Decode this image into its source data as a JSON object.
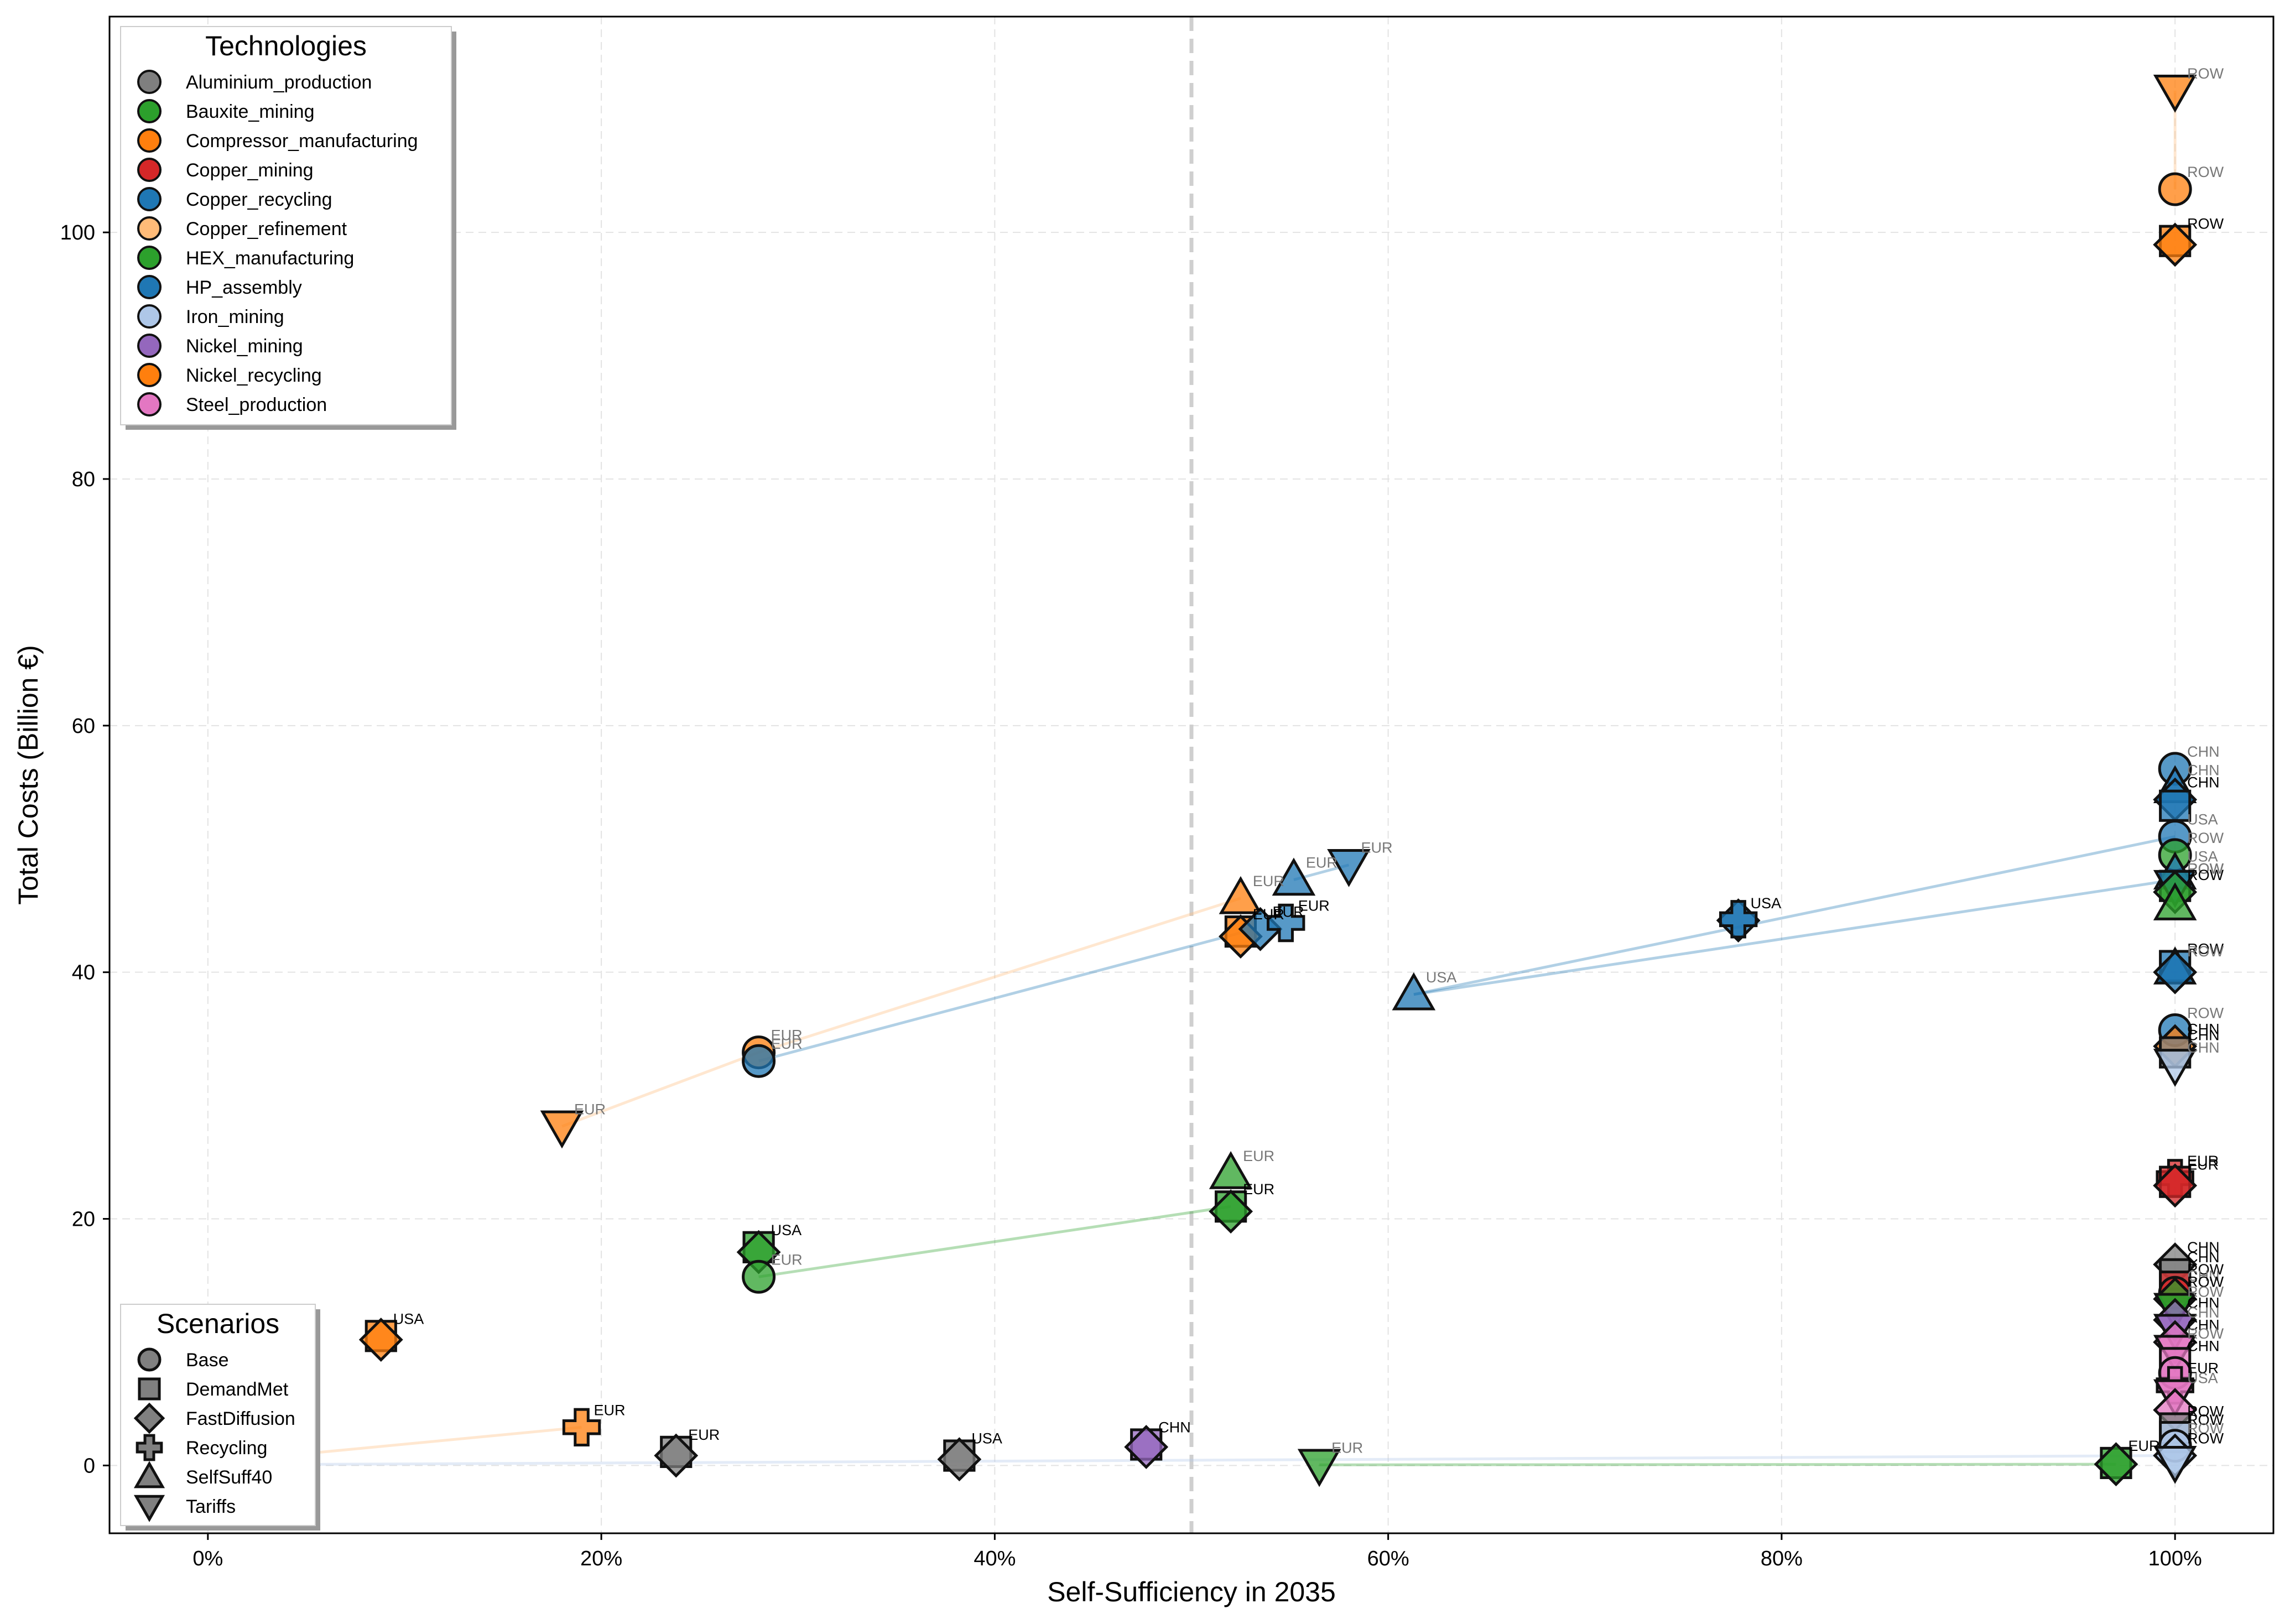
{
  "chart_data": {
    "type": "scatter",
    "xlabel": "Self-Sufficiency in 2035",
    "ylabel": "Total Costs (Billion €)",
    "xlim": [
      -0.05,
      1.05
    ],
    "ylim": [
      -5.5,
      117.5
    ],
    "x_ticks": [
      0,
      0.2,
      0.4,
      0.6,
      0.8,
      1.0
    ],
    "x_tick_labels": [
      "0%",
      "20%",
      "40%",
      "60%",
      "80%",
      "100%"
    ],
    "y_ticks": [
      0,
      20,
      40,
      60,
      80,
      100
    ],
    "y_tick_labels": [
      "0",
      "20",
      "40",
      "60",
      "80",
      "100"
    ],
    "grid": true,
    "reference_line_x": 0.5,
    "legends": {
      "technologies": {
        "title": "Technologies",
        "placement": "upper-left",
        "entries": [
          {
            "name": "Aluminium_production",
            "color": "#7f7f7f"
          },
          {
            "name": "Bauxite_mining",
            "color": "#2ca02c"
          },
          {
            "name": "Compressor_manufacturing",
            "color": "#ff7f0e"
          },
          {
            "name": "Copper_mining",
            "color": "#d62728"
          },
          {
            "name": "Copper_recycling",
            "color": "#1f77b4"
          },
          {
            "name": "Copper_refinement",
            "color": "#ffbb78"
          },
          {
            "name": "HEX_manufacturing",
            "color": "#2ca02c"
          },
          {
            "name": "HP_assembly",
            "color": "#1f77b4"
          },
          {
            "name": "Iron_mining",
            "color": "#aec7e8"
          },
          {
            "name": "Nickel_mining",
            "color": "#9467bd"
          },
          {
            "name": "Nickel_recycling",
            "color": "#ff7f0e"
          },
          {
            "name": "Steel_production",
            "color": "#e377c2"
          }
        ]
      },
      "scenarios": {
        "title": "Scenarios",
        "placement": "lower-left",
        "entries": [
          {
            "name": "Base",
            "marker": "circle"
          },
          {
            "name": "DemandMet",
            "marker": "square"
          },
          {
            "name": "FastDiffusion",
            "marker": "diamond"
          },
          {
            "name": "Recycling",
            "marker": "plus"
          },
          {
            "name": "SelfSuff40",
            "marker": "triangle-up"
          },
          {
            "name": "Tariffs",
            "marker": "triangle-down"
          }
        ]
      }
    },
    "lines": [
      {
        "color": "#ffbb78",
        "points": [
          [
            0.18,
            27.5
          ],
          [
            0.28,
            33.5
          ],
          [
            0.525,
            46
          ]
        ]
      },
      {
        "color": "#1f77b4",
        "points": [
          [
            0.28,
            32.8
          ],
          [
            0.525,
            43.2
          ]
        ]
      },
      {
        "color": "#1f77b4",
        "points": [
          [
            0.552,
            47.5
          ],
          [
            0.58,
            48.7
          ]
        ]
      },
      {
        "color": "#2ca02c",
        "points": [
          [
            0.28,
            15.3
          ],
          [
            0.52,
            21
          ]
        ]
      },
      {
        "color": "#1f77b4",
        "points": [
          [
            0.613,
            38.2
          ],
          [
            1.0,
            51
          ]
        ]
      },
      {
        "color": "#1f77b4",
        "points": [
          [
            0.613,
            38.2
          ],
          [
            1.0,
            47.5
          ]
        ]
      },
      {
        "color": "#ffbb78",
        "points": [
          [
            0.0,
            0.2
          ],
          [
            0.19,
            3.1
          ]
        ]
      },
      {
        "color": "#aec7e8",
        "points": [
          [
            0.0,
            0.05
          ],
          [
            1.0,
            0.8
          ]
        ]
      },
      {
        "color": "#2ca02c",
        "points": [
          [
            0.565,
            0.05
          ],
          [
            0.97,
            0.1
          ]
        ]
      },
      {
        "color": "#ffbb78",
        "points": [
          [
            1.0,
            103.5
          ],
          [
            1.0,
            111.5
          ]
        ]
      }
    ],
    "points": [
      {
        "tech": "Nickel_recycling",
        "scenario": "Tariffs",
        "x": 1.0,
        "y": 111.5,
        "label": "ROW"
      },
      {
        "tech": "Nickel_recycling",
        "scenario": "Base",
        "x": 1.0,
        "y": 103.5,
        "label": "ROW"
      },
      {
        "tech": "Nickel_recycling",
        "scenario": "DemandMet",
        "x": 1.0,
        "y": 99.3,
        "label": "ROW"
      },
      {
        "tech": "Nickel_recycling",
        "scenario": "FastDiffusion",
        "x": 1.0,
        "y": 99.0,
        "label": ""
      },
      {
        "tech": "Copper_recycling",
        "scenario": "Base",
        "x": 1.0,
        "y": 56.5,
        "label": "CHN"
      },
      {
        "tech": "Copper_recycling",
        "scenario": "SelfSuff40",
        "x": 1.0,
        "y": 55.0,
        "label": "CHN"
      },
      {
        "tech": "Copper_recycling",
        "scenario": "FastDiffusion",
        "x": 1.0,
        "y": 54.0,
        "label": "CHN"
      },
      {
        "tech": "Copper_recycling",
        "scenario": "DemandMet",
        "x": 1.0,
        "y": 53.5,
        "label": ""
      },
      {
        "tech": "Copper_recycling",
        "scenario": "Base",
        "x": 1.0,
        "y": 51.0,
        "label": "USA"
      },
      {
        "tech": "HEX_manufacturing",
        "scenario": "Base",
        "x": 1.0,
        "y": 49.5,
        "label": "ROW"
      },
      {
        "tech": "Copper_recycling",
        "scenario": "SelfSuff40",
        "x": 1.0,
        "y": 48.0,
        "label": "USA"
      },
      {
        "tech": "HEX_manufacturing",
        "scenario": "DemandMet",
        "x": 1.0,
        "y": 47.0,
        "label": "ROW"
      },
      {
        "tech": "Copper_recycling",
        "scenario": "Tariffs",
        "x": 1.0,
        "y": 47.0,
        "label": "ROW"
      },
      {
        "tech": "HEX_manufacturing",
        "scenario": "FastDiffusion",
        "x": 1.0,
        "y": 46.5,
        "label": "ROW"
      },
      {
        "tech": "HEX_manufacturing",
        "scenario": "SelfSuff40",
        "x": 1.0,
        "y": 45.5,
        "label": ""
      },
      {
        "tech": "HP_assembly",
        "scenario": "DemandMet",
        "x": 1.0,
        "y": 40.5,
        "label": "ROW"
      },
      {
        "tech": "HP_assembly",
        "scenario": "SelfSuff40",
        "x": 1.0,
        "y": 40.3,
        "label": "ROW"
      },
      {
        "tech": "HP_assembly",
        "scenario": "FastDiffusion",
        "x": 1.0,
        "y": 40.0,
        "label": ""
      },
      {
        "tech": "Copper_recycling",
        "scenario": "Base",
        "x": 1.0,
        "y": 35.3,
        "label": "ROW"
      },
      {
        "tech": "Compressor_manufacturing",
        "scenario": "FastDiffusion",
        "x": 1.0,
        "y": 34.0,
        "label": "CHN"
      },
      {
        "tech": "Aluminium_production",
        "scenario": "DemandMet",
        "x": 1.0,
        "y": 33.5,
        "label": "CHN"
      },
      {
        "tech": "Iron_mining",
        "scenario": "Tariffs",
        "x": 1.0,
        "y": 32.5,
        "label": "CHN"
      },
      {
        "tech": "Copper_mining",
        "scenario": "Recycling",
        "x": 1.0,
        "y": 23.3,
        "label": "EUR"
      },
      {
        "tech": "Copper_mining",
        "scenario": "DemandMet",
        "x": 1.0,
        "y": 23.0,
        "label": "EUR"
      },
      {
        "tech": "Copper_mining",
        "scenario": "FastDiffusion",
        "x": 1.0,
        "y": 22.7,
        "label": ""
      },
      {
        "tech": "Aluminium_production",
        "scenario": "FastDiffusion",
        "x": 1.0,
        "y": 16.3,
        "label": "CHN"
      },
      {
        "tech": "Aluminium_production",
        "scenario": "DemandMet",
        "x": 1.0,
        "y": 15.5,
        "label": "CHN"
      },
      {
        "tech": "Copper_mining",
        "scenario": "DemandMet",
        "x": 1.0,
        "y": 14.5,
        "label": "ROW"
      },
      {
        "tech": "Copper_mining",
        "scenario": "Base",
        "x": 1.0,
        "y": 14.0,
        "label": "CHN"
      },
      {
        "tech": "Bauxite_mining",
        "scenario": "FastDiffusion",
        "x": 1.0,
        "y": 13.5,
        "label": "ROW"
      },
      {
        "tech": "Bauxite_mining",
        "scenario": "Tariffs",
        "x": 1.0,
        "y": 12.7,
        "label": "ROW"
      },
      {
        "tech": "Nickel_mining",
        "scenario": "FastDiffusion",
        "x": 1.0,
        "y": 11.8,
        "label": "CHN"
      },
      {
        "tech": "Nickel_mining",
        "scenario": "Tariffs",
        "x": 1.0,
        "y": 11.0,
        "label": "CHN"
      },
      {
        "tech": "Steel_production",
        "scenario": "FastDiffusion",
        "x": 1.0,
        "y": 10.0,
        "label": "CHN"
      },
      {
        "tech": "Steel_production",
        "scenario": "Tariffs",
        "x": 1.0,
        "y": 9.3,
        "label": "ROW"
      },
      {
        "tech": "Steel_production",
        "scenario": "DemandMet",
        "x": 1.0,
        "y": 8.3,
        "label": "CHN"
      },
      {
        "tech": "Steel_production",
        "scenario": "Base",
        "x": 1.0,
        "y": 7.5,
        "label": ""
      },
      {
        "tech": "Steel_production",
        "scenario": "Recycling",
        "x": 1.0,
        "y": 6.5,
        "label": "EUR"
      },
      {
        "tech": "Steel_production",
        "scenario": "Tariffs",
        "x": 1.0,
        "y": 5.7,
        "label": "USA"
      },
      {
        "tech": "Steel_production",
        "scenario": "FastDiffusion",
        "x": 1.0,
        "y": 4.5,
        "label": ""
      },
      {
        "tech": "Aluminium_production",
        "scenario": "DemandMet",
        "x": 1.0,
        "y": 3.0,
        "label": "ROW"
      },
      {
        "tech": "Iron_mining",
        "scenario": "DemandMet",
        "x": 1.0,
        "y": 2.3,
        "label": "ROW"
      },
      {
        "tech": "Iron_mining",
        "scenario": "Base",
        "x": 1.0,
        "y": 1.6,
        "label": "ROW"
      },
      {
        "tech": "Iron_mining",
        "scenario": "FastDiffusion",
        "x": 1.0,
        "y": 0.8,
        "label": "ROW"
      },
      {
        "tech": "Iron_mining",
        "scenario": "Tariffs",
        "x": 1.0,
        "y": 0.3,
        "label": ""
      },
      {
        "tech": "Bauxite_mining",
        "scenario": "DemandMet",
        "x": 0.97,
        "y": 0.2,
        "label": "EUR"
      },
      {
        "tech": "Bauxite_mining",
        "scenario": "FastDiffusion",
        "x": 0.97,
        "y": 0.1,
        "label": ""
      },
      {
        "tech": "Nickel_recycling",
        "scenario": "Tariffs",
        "x": 0.18,
        "y": 27.5,
        "label": "EUR"
      },
      {
        "tech": "Nickel_recycling",
        "scenario": "Base",
        "x": 0.28,
        "y": 33.5,
        "label": "EUR"
      },
      {
        "tech": "Copper_recycling",
        "scenario": "Base",
        "x": 0.28,
        "y": 32.8,
        "label": "EUR"
      },
      {
        "tech": "Nickel_recycling",
        "scenario": "SelfSuff40",
        "x": 0.525,
        "y": 46.0,
        "label": "EUR"
      },
      {
        "tech": "Nickel_recycling",
        "scenario": "DemandMet",
        "x": 0.525,
        "y": 43.3,
        "label": "EUR"
      },
      {
        "tech": "Nickel_recycling",
        "scenario": "FastDiffusion",
        "x": 0.525,
        "y": 42.9,
        "label": ""
      },
      {
        "tech": "Copper_recycling",
        "scenario": "FastDiffusion",
        "x": 0.535,
        "y": 43.5,
        "label": "EUR"
      },
      {
        "tech": "Copper_recycling",
        "scenario": "Recycling",
        "x": 0.548,
        "y": 44.0,
        "label": "EUR"
      },
      {
        "tech": "Copper_recycling",
        "scenario": "SelfSuff40",
        "x": 0.552,
        "y": 47.5,
        "label": "EUR"
      },
      {
        "tech": "Copper_recycling",
        "scenario": "Tariffs",
        "x": 0.58,
        "y": 48.7,
        "label": "EUR"
      },
      {
        "tech": "Copper_recycling",
        "scenario": "SelfSuff40",
        "x": 0.613,
        "y": 38.2,
        "label": "USA"
      },
      {
        "tech": "Copper_recycling",
        "scenario": "FastDiffusion",
        "x": 0.778,
        "y": 44.2,
        "label": "USA"
      },
      {
        "tech": "Copper_recycling",
        "scenario": "Recycling",
        "x": 0.778,
        "y": 44.3,
        "label": ""
      },
      {
        "tech": "HEX_manufacturing",
        "scenario": "DemandMet",
        "x": 0.28,
        "y": 17.7,
        "label": "USA"
      },
      {
        "tech": "HEX_manufacturing",
        "scenario": "FastDiffusion",
        "x": 0.28,
        "y": 17.3,
        "label": ""
      },
      {
        "tech": "HEX_manufacturing",
        "scenario": "Base",
        "x": 0.28,
        "y": 15.3,
        "label": "EUR"
      },
      {
        "tech": "HEX_manufacturing",
        "scenario": "SelfSuff40",
        "x": 0.52,
        "y": 23.7,
        "label": "EUR"
      },
      {
        "tech": "HEX_manufacturing",
        "scenario": "DemandMet",
        "x": 0.52,
        "y": 21.0,
        "label": "EUR"
      },
      {
        "tech": "HEX_manufacturing",
        "scenario": "FastDiffusion",
        "x": 0.52,
        "y": 20.6,
        "label": ""
      },
      {
        "tech": "Compressor_manufacturing",
        "scenario": "DemandMet",
        "x": 0.088,
        "y": 10.5,
        "label": "USA"
      },
      {
        "tech": "Compressor_manufacturing",
        "scenario": "FastDiffusion",
        "x": 0.088,
        "y": 10.2,
        "label": ""
      },
      {
        "tech": "Nickel_recycling",
        "scenario": "Recycling",
        "x": 0.19,
        "y": 3.1,
        "label": "EUR"
      },
      {
        "tech": "Iron_mining",
        "scenario": "Base",
        "x": 0.0,
        "y": 0.1,
        "label": "USA"
      },
      {
        "tech": "Aluminium_production",
        "scenario": "DemandMet",
        "x": 0.238,
        "y": 1.1,
        "label": "EUR"
      },
      {
        "tech": "Aluminium_production",
        "scenario": "FastDiffusion",
        "x": 0.238,
        "y": 0.8,
        "label": ""
      },
      {
        "tech": "Aluminium_production",
        "scenario": "DemandMet",
        "x": 0.382,
        "y": 0.8,
        "label": "USA"
      },
      {
        "tech": "Aluminium_production",
        "scenario": "FastDiffusion",
        "x": 0.382,
        "y": 0.5,
        "label": ""
      },
      {
        "tech": "Nickel_mining",
        "scenario": "DemandMet",
        "x": 0.477,
        "y": 1.7,
        "label": "CHN"
      },
      {
        "tech": "Nickel_mining",
        "scenario": "FastDiffusion",
        "x": 0.477,
        "y": 1.5,
        "label": ""
      },
      {
        "tech": "HEX_manufacturing",
        "scenario": "Tariffs",
        "x": 0.565,
        "y": 0.05,
        "label": "EUR"
      }
    ]
  }
}
